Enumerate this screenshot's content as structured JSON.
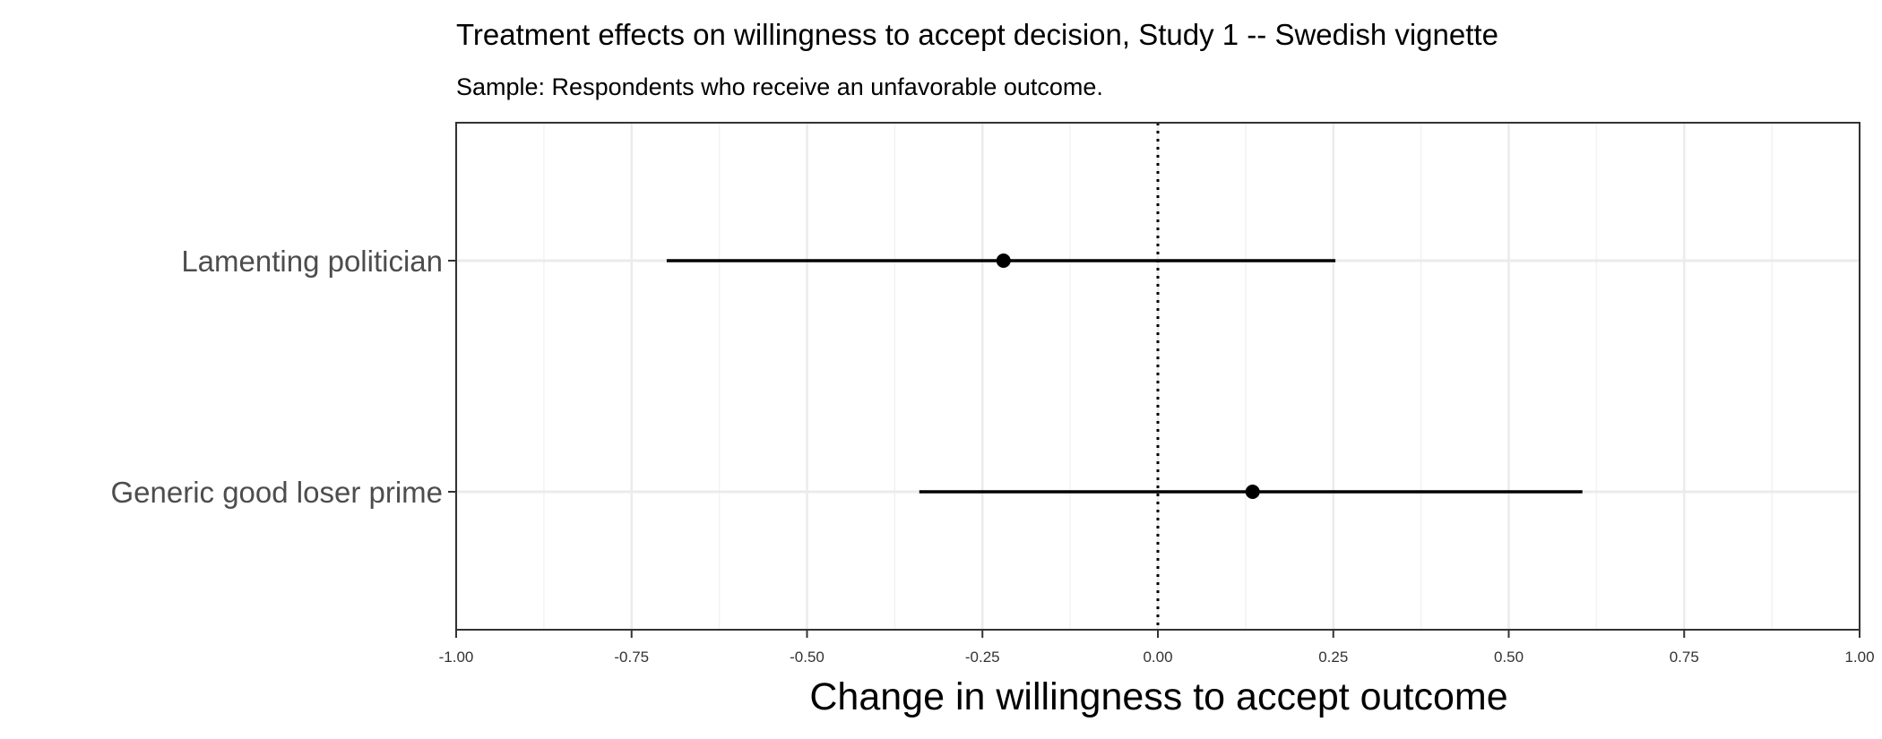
{
  "chart_data": {
    "type": "dot-and-whisker",
    "title": "Treatment effects on willingness to accept decision, Study 1 -- Swedish vignette",
    "subtitle": "Sample: Respondents who receive an unfavorable outcome.",
    "xlabel": "Change in willingness to accept outcome",
    "ylabel": "",
    "xlim": [
      -1.0,
      1.0
    ],
    "xticks": [
      "-1.00",
      "-0.75",
      "-0.50",
      "-0.25",
      "0.00",
      "0.25",
      "0.50",
      "0.75",
      "1.00"
    ],
    "reference_line": 0,
    "grid": true,
    "categories": [
      "Lamenting politician",
      "Generic good loser prime"
    ],
    "estimates": [
      -0.22,
      0.135
    ],
    "ci_low": [
      -0.7,
      -0.34
    ],
    "ci_high": [
      0.253,
      0.605
    ],
    "colors": {
      "marker": "#000000",
      "grid_major": "#ebebeb",
      "grid_minor": "#f2f2f2",
      "panel_border": "#333333"
    }
  }
}
